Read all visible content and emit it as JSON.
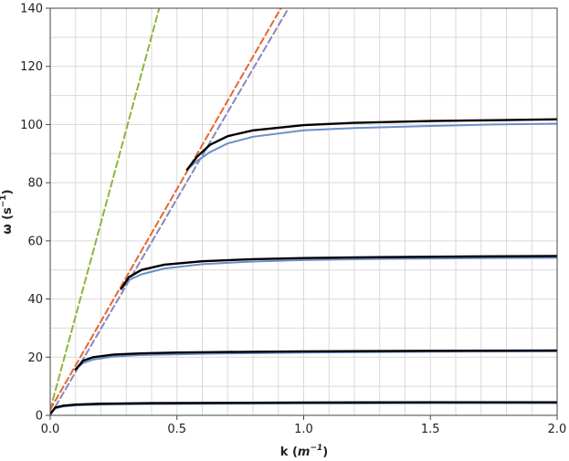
{
  "chart_data": {
    "type": "line",
    "xlabel_main": "k (",
    "xlabel_unit": "m",
    "xlabel_exp": "−1",
    "xlabel_close": ")",
    "ylabel_main": "ω (s",
    "ylabel_exp": "−1",
    "ylabel_close": ")",
    "xlim": [
      0,
      2.0
    ],
    "ylim": [
      0,
      140
    ],
    "x_ticks": [
      0.0,
      0.5,
      1.0,
      1.5,
      2.0
    ],
    "x_tick_labels": [
      "0.0",
      "0.5",
      "1.0",
      "1.5",
      "2.0"
    ],
    "y_ticks": [
      0,
      20,
      40,
      60,
      80,
      100,
      120,
      140
    ],
    "y_tick_labels": [
      "0",
      "20",
      "40",
      "60",
      "80",
      "100",
      "120",
      "140"
    ],
    "grid": true,
    "colors": {
      "green_dashed": "#8db53c",
      "orange_dashed": "#e4682e",
      "purple_dashed": "#8c85bd",
      "blue": "#6a8fc9",
      "black": "#000000"
    },
    "series": [
      {
        "style": "green_dashed",
        "x": [
          0,
          0.43
        ],
        "y": [
          2,
          140
        ]
      },
      {
        "style": "orange_dashed",
        "x": [
          0,
          0.91
        ],
        "y": [
          2,
          140
        ]
      },
      {
        "style": "purple_dashed",
        "x": [
          0,
          0.94
        ],
        "y": [
          0,
          140
        ]
      },
      {
        "style": "blue",
        "x": [
          0.0,
          0.02,
          0.05,
          0.1,
          0.2,
          0.4,
          0.7,
          1.0,
          1.5,
          2.0
        ],
        "y": [
          0.5,
          2.4,
          3.0,
          3.4,
          3.7,
          3.9,
          4.0,
          4.1,
          4.2,
          4.2
        ]
      },
      {
        "style": "black",
        "x": [
          0.0,
          0.02,
          0.05,
          0.1,
          0.2,
          0.4,
          0.7,
          1.0,
          1.5,
          2.0
        ],
        "y": [
          0.5,
          2.7,
          3.3,
          3.7,
          4.0,
          4.2,
          4.3,
          4.4,
          4.5,
          4.5
        ]
      },
      {
        "style": "blue",
        "x": [
          0.1,
          0.13,
          0.17,
          0.25,
          0.35,
          0.5,
          0.7,
          1.0,
          1.5,
          2.0
        ],
        "y": [
          15.8,
          18.0,
          19.2,
          20.2,
          20.7,
          21.0,
          21.3,
          21.6,
          21.9,
          22.0
        ]
      },
      {
        "style": "black",
        "x": [
          0.1,
          0.13,
          0.17,
          0.25,
          0.35,
          0.5,
          0.7,
          1.0,
          1.5,
          2.0
        ],
        "y": [
          15.8,
          18.8,
          20.0,
          20.9,
          21.3,
          21.6,
          21.8,
          22.0,
          22.2,
          22.3
        ]
      },
      {
        "style": "blue",
        "x": [
          0.28,
          0.31,
          0.36,
          0.45,
          0.6,
          0.8,
          1.0,
          1.3,
          1.6,
          2.0
        ],
        "y": [
          43.5,
          46.5,
          48.5,
          50.5,
          52.0,
          52.9,
          53.4,
          53.8,
          54.0,
          54.2
        ]
      },
      {
        "style": "black",
        "x": [
          0.28,
          0.31,
          0.36,
          0.45,
          0.6,
          0.8,
          1.0,
          1.3,
          1.6,
          2.0
        ],
        "y": [
          43.5,
          47.5,
          50.0,
          51.8,
          53.0,
          53.7,
          54.1,
          54.4,
          54.6,
          54.8
        ]
      },
      {
        "style": "blue",
        "x": [
          0.54,
          0.58,
          0.63,
          0.7,
          0.8,
          1.0,
          1.2,
          1.5,
          1.75,
          2.0
        ],
        "y": [
          84.5,
          87.5,
          90.5,
          93.5,
          95.8,
          98.0,
          98.8,
          99.5,
          100.0,
          100.3
        ]
      },
      {
        "style": "black",
        "x": [
          0.54,
          0.58,
          0.63,
          0.7,
          0.8,
          1.0,
          1.2,
          1.5,
          1.75,
          2.0
        ],
        "y": [
          84.5,
          89.0,
          93.0,
          96.0,
          98.0,
          99.8,
          100.6,
          101.2,
          101.5,
          101.8
        ]
      }
    ]
  }
}
